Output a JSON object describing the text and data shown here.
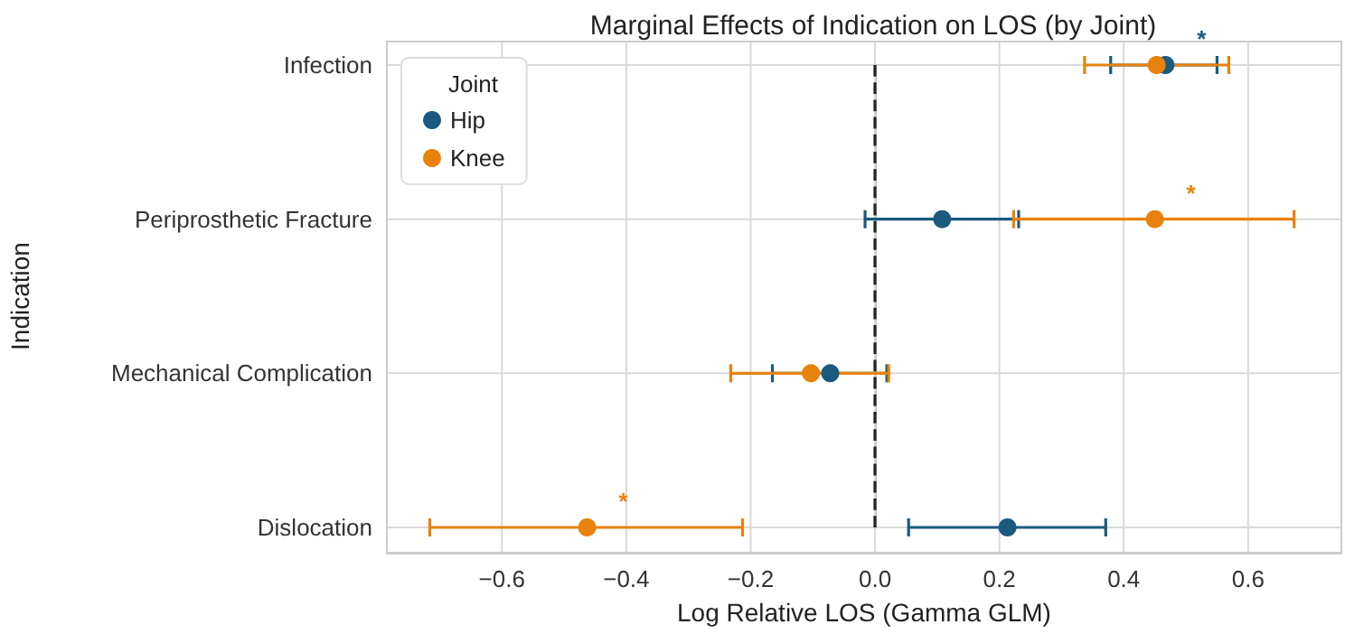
{
  "chart_data": {
    "type": "scatter",
    "orientation": "horizontal",
    "title": "Marginal Effects of Indication on LOS (by Joint)",
    "xlabel": "Log Relative LOS (Gamma GLM)",
    "ylabel": "Indication",
    "legend_title": "Joint",
    "categories": [
      "Infection",
      "Periprosthetic Fracture",
      "Mechanical Complication",
      "Dislocation"
    ],
    "series": [
      {
        "name": "Hip",
        "color": "#1a5a7e",
        "values": [
          0.467,
          0.108,
          -0.072,
          0.213
        ],
        "errors": [
          [
            0.379,
            0.55
          ],
          [
            -0.016,
            0.231
          ],
          [
            -0.165,
            0.019
          ],
          [
            0.054,
            0.371
          ]
        ],
        "value_labels": [
          "*",
          null,
          null,
          null
        ]
      },
      {
        "name": "Knee",
        "color": "#e8820c",
        "values": [
          0.453,
          0.45,
          -0.103,
          -0.463
        ],
        "errors": [
          [
            0.337,
            0.569
          ],
          [
            0.223,
            0.674
          ],
          [
            -0.232,
            0.022
          ],
          [
            -0.716,
            -0.213
          ]
        ],
        "value_labels": [
          null,
          "*",
          null,
          "*"
        ]
      }
    ],
    "xlim": [
      -0.785,
      0.75
    ],
    "xticks": [
      -0.6,
      -0.4,
      -0.2,
      {
        "value": 0,
        "label": "0.0"
      },
      0.2,
      0.4,
      0.6
    ],
    "ref_lines": [
      {
        "axis": "x",
        "value": 0,
        "color": "#222222",
        "line_style": "dashed"
      }
    ],
    "marker": "circle",
    "grid": true,
    "legend": "top left"
  }
}
